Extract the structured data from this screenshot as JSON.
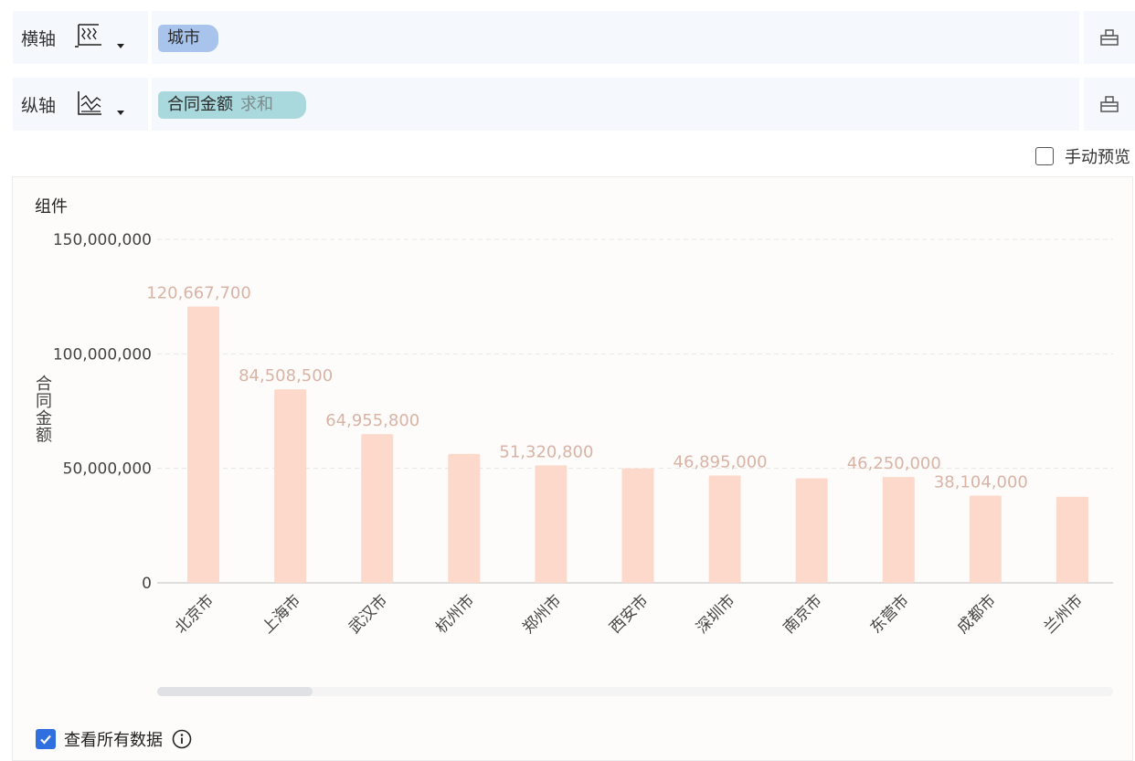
{
  "x_axis_row": {
    "label": "横轴",
    "icon": "x-axis-dimension-icon",
    "field_label": "城市",
    "tool_icon": "hierarchy-icon",
    "color": "#a9c4ec"
  },
  "y_axis_row": {
    "label": "纵轴",
    "icon": "y-axis-measure-icon",
    "field_label": "合同金额",
    "aggregation": "求和",
    "tool_icon": "hierarchy-icon",
    "color": "#a9d9dc"
  },
  "manual_preview": {
    "label": "手动预览",
    "checked": false
  },
  "component_title": "组件",
  "view_all": {
    "label": "查看所有数据",
    "checked": true,
    "icon": "info-icon"
  },
  "chart_data": {
    "type": "bar",
    "title": "",
    "xlabel": "",
    "ylabel": "合同金额",
    "ylim": [
      0,
      150000000
    ],
    "yticks": [
      0,
      50000000,
      100000000,
      150000000
    ],
    "ytick_labels": [
      "0",
      "50,000,000",
      "100,000,000",
      "150,000,000"
    ],
    "grid": true,
    "bar_color": "#fdd9cc",
    "label_color": "#d9b3a6",
    "categories": [
      "北京市",
      "上海市",
      "武汉市",
      "杭州市",
      "郑州市",
      "西安市",
      "深圳市",
      "南京市",
      "东营市",
      "成都市",
      "兰州市"
    ],
    "values": [
      120667700,
      84508500,
      64955800,
      56300000,
      51320800,
      50000000,
      46895000,
      45700000,
      46250000,
      38104000,
      37600000
    ],
    "data_labels": [
      "120,667,700",
      "84,508,500",
      "64,955,800",
      "",
      "51,320,800",
      "",
      "46,895,000",
      "",
      "46,250,000",
      "38,104,000",
      ""
    ]
  }
}
